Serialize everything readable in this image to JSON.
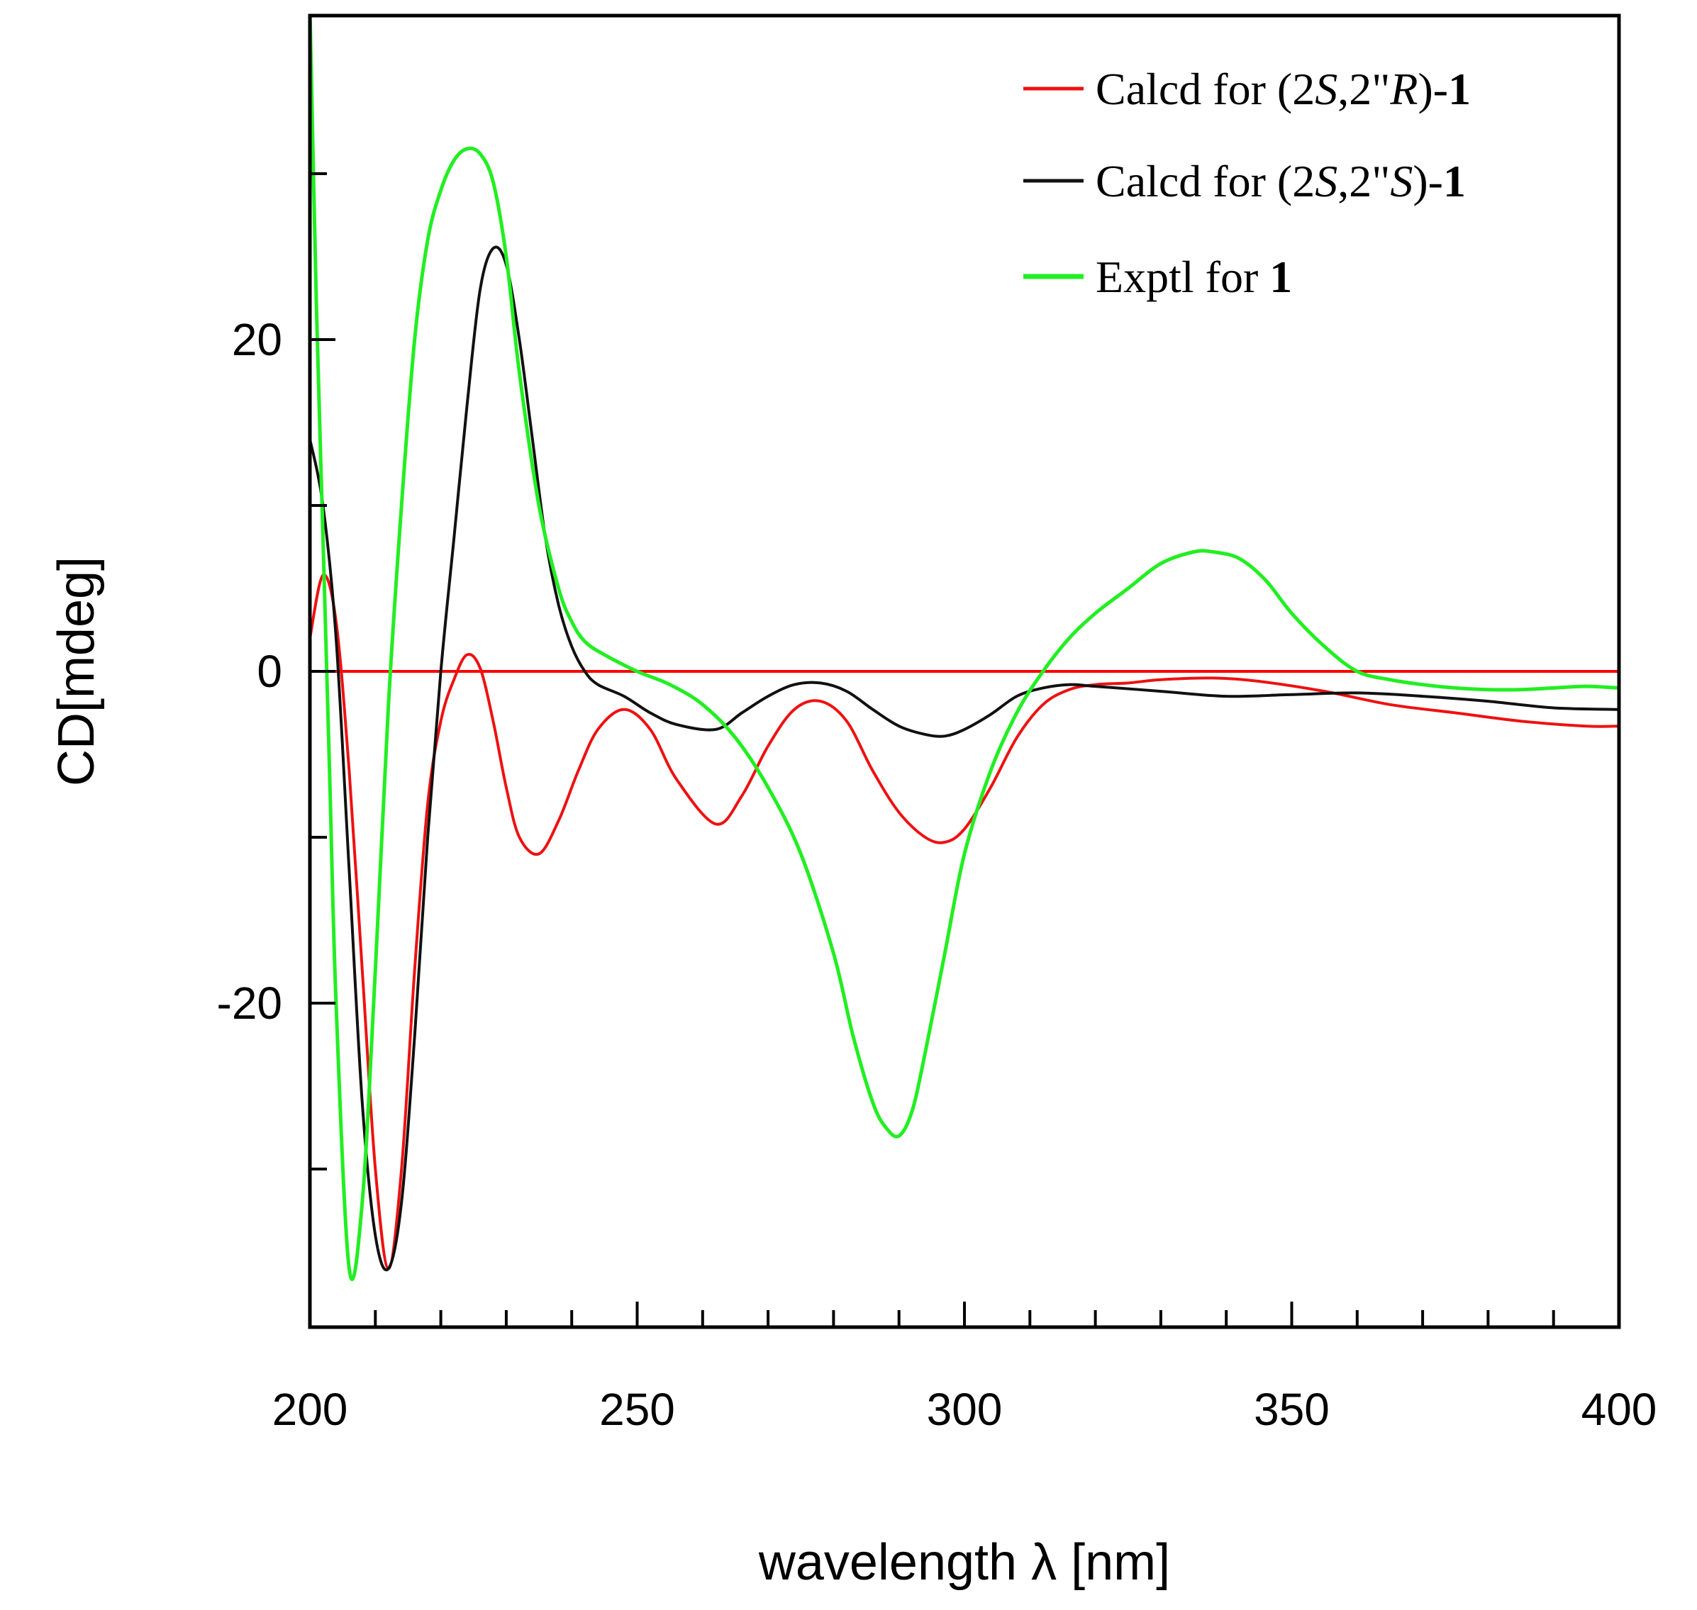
{
  "chart_data": {
    "type": "line",
    "title": "",
    "xlabel": "wavelength λ [nm]",
    "ylabel": "CD[mdeg]",
    "xlim": [
      200,
      400
    ],
    "ylim": [
      -40,
      40
    ],
    "x_ticks": [
      200,
      250,
      300,
      350,
      400
    ],
    "x_tick_labels": [
      "200",
      "250",
      "300",
      "350",
      "400"
    ],
    "y_ticks": [
      -20,
      0,
      20
    ],
    "y_tick_labels": [
      "-20",
      "0",
      "20"
    ],
    "grid": false,
    "legend_position": "top-right",
    "zero_line": {
      "value": 0,
      "color": "#ff0000"
    },
    "series": [
      {
        "name": "Calcd for (2S,2\"R)-1",
        "legend": [
          {
            "text": "Calcd for (2",
            "style": "normal"
          },
          {
            "text": "S",
            "style": "italic"
          },
          {
            "text": ",2\"",
            "style": "normal"
          },
          {
            "text": "R",
            "style": "italic"
          },
          {
            "text": ")-",
            "style": "normal"
          },
          {
            "text": "1",
            "style": "bold"
          }
        ],
        "color": "#ee1111",
        "x": [
          200,
          202,
          204,
          206,
          208,
          210,
          212,
          214,
          216,
          218,
          220,
          222,
          224,
          226,
          228,
          230,
          232,
          235,
          238,
          241,
          244,
          248,
          252,
          256,
          262,
          266,
          270,
          274,
          278,
          282,
          286,
          290,
          294,
          297,
          300,
          304,
          308,
          312,
          316,
          320,
          325,
          330,
          338,
          345,
          355,
          365,
          375,
          385,
          395,
          400
        ],
        "y": [
          2,
          5.8,
          3,
          -6,
          -18,
          -30,
          -36,
          -30,
          -18,
          -8,
          -3,
          -0.5,
          1,
          0.2,
          -3,
          -7,
          -10,
          -11,
          -9,
          -6,
          -3.5,
          -2.3,
          -3.5,
          -6.5,
          -9.2,
          -7.5,
          -4.5,
          -2.3,
          -1.8,
          -3,
          -6,
          -8.5,
          -10,
          -10.3,
          -9.5,
          -7,
          -4,
          -2,
          -1.1,
          -0.8,
          -0.7,
          -0.5,
          -0.4,
          -0.6,
          -1.2,
          -2,
          -2.5,
          -3,
          -3.3,
          -3.3
        ]
      },
      {
        "name": "Calcd for (2S,2\"S)-1",
        "legend": [
          {
            "text": "Calcd for (2",
            "style": "normal"
          },
          {
            "text": "S",
            "style": "italic"
          },
          {
            "text": ",2\"",
            "style": "normal"
          },
          {
            "text": "S",
            "style": "italic"
          },
          {
            "text": ")-",
            "style": "normal"
          },
          {
            "text": "1",
            "style": "bold"
          }
        ],
        "color": "#111111",
        "x": [
          200,
          202,
          204,
          206,
          208,
          210,
          212,
          214,
          216,
          218,
          220,
          222,
          224,
          226,
          228,
          230,
          232,
          234,
          236,
          238,
          240,
          242,
          244,
          248,
          252,
          256,
          262,
          266,
          270,
          274,
          278,
          282,
          286,
          290,
          294,
          297,
          300,
          304,
          308,
          312,
          316,
          320,
          330,
          340,
          350,
          360,
          370,
          380,
          390,
          400
        ],
        "y": [
          14,
          10,
          2,
          -12,
          -26,
          -34,
          -36,
          -32,
          -22,
          -10,
          0,
          8,
          16,
          23,
          25.5,
          24.5,
          20,
          14,
          8,
          4,
          1.5,
          0,
          -0.8,
          -1.5,
          -2.5,
          -3.2,
          -3.5,
          -2.5,
          -1.5,
          -0.8,
          -0.7,
          -1.2,
          -2.3,
          -3.3,
          -3.8,
          -3.9,
          -3.5,
          -2.6,
          -1.5,
          -1,
          -0.8,
          -0.9,
          -1.2,
          -1.5,
          -1.4,
          -1.3,
          -1.5,
          -1.8,
          -2.2,
          -2.3
        ]
      },
      {
        "name": "Exptl for 1",
        "legend": [
          {
            "text": "Exptl for ",
            "style": "normal"
          },
          {
            "text": "1",
            "style": "bold"
          }
        ],
        "color": "#22ee22",
        "x": [
          200,
          201,
          202,
          203,
          204,
          206,
          208,
          210,
          212,
          214,
          216,
          218,
          220,
          222,
          224,
          226,
          228,
          230,
          232,
          235,
          238,
          240,
          242,
          245,
          250,
          255,
          260,
          265,
          270,
          275,
          280,
          283,
          286,
          288,
          290,
          292,
          294,
          297,
          300,
          304,
          308,
          312,
          316,
          320,
          325,
          330,
          335,
          338,
          342,
          346,
          350,
          355,
          360,
          365,
          370,
          375,
          380,
          385,
          390,
          395,
          400
        ],
        "y": [
          40,
          22,
          8,
          -6,
          -20,
          -36,
          -32,
          -18,
          -2,
          10,
          20,
          26,
          29,
          30.8,
          31.5,
          31.2,
          29.5,
          25,
          18,
          10,
          5,
          3,
          1.8,
          1,
          0,
          -0.8,
          -2,
          -4,
          -7,
          -11,
          -17,
          -22,
          -26,
          -27.5,
          -28,
          -26.5,
          -23,
          -17,
          -11,
          -6,
          -2.5,
          0,
          2,
          3.5,
          5,
          6.5,
          7.2,
          7.2,
          6.8,
          5.5,
          3.5,
          1.5,
          0,
          -0.5,
          -0.8,
          -1,
          -1.1,
          -1.1,
          -1,
          -0.9,
          -1
        ]
      }
    ]
  }
}
